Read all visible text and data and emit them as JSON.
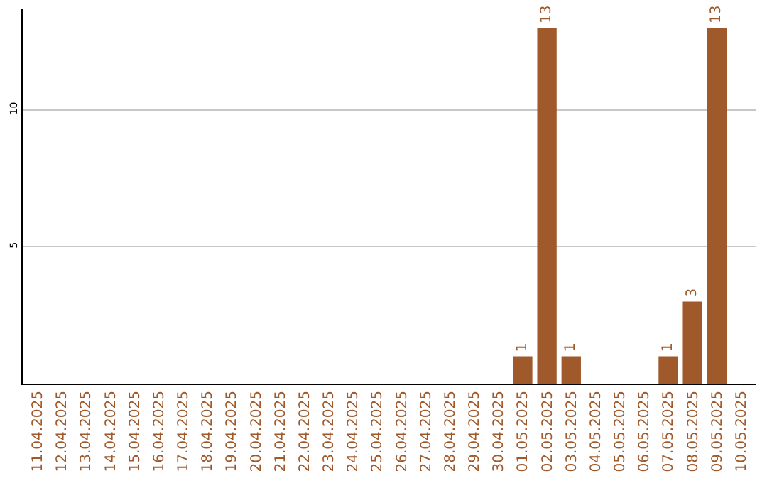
{
  "chart_data": {
    "type": "bar",
    "categories": [
      "11.04.2025",
      "12.04.2025",
      "13.04.2025",
      "14.04.2025",
      "15.04.2025",
      "16.04.2025",
      "17.04.2025",
      "18.04.2025",
      "19.04.2025",
      "20.04.2025",
      "21.04.2025",
      "22.04.2025",
      "23.04.2025",
      "24.04.2025",
      "25.04.2025",
      "26.04.2025",
      "27.04.2025",
      "28.04.2025",
      "29.04.2025",
      "30.04.2025",
      "01.05.2025",
      "02.05.2025",
      "03.05.2025",
      "04.05.2025",
      "05.05.2025",
      "06.05.2025",
      "07.05.2025",
      "08.05.2025",
      "09.05.2025",
      "10.05.2025"
    ],
    "values": [
      0,
      0,
      0,
      0,
      0,
      0,
      0,
      0,
      0,
      0,
      0,
      0,
      0,
      0,
      0,
      0,
      0,
      0,
      0,
      0,
      1,
      13,
      1,
      0,
      0,
      0,
      1,
      3,
      13,
      0
    ],
    "value_labels": [
      null,
      null,
      null,
      null,
      null,
      null,
      null,
      null,
      null,
      null,
      null,
      null,
      null,
      null,
      null,
      null,
      null,
      null,
      null,
      null,
      "1",
      "13",
      "1",
      null,
      null,
      null,
      "1",
      "3",
      "13",
      null
    ],
    "color": "#a0592a",
    "ylim": [
      0,
      13.7
    ],
    "yticks": [
      5,
      10
    ],
    "grid": "y"
  }
}
